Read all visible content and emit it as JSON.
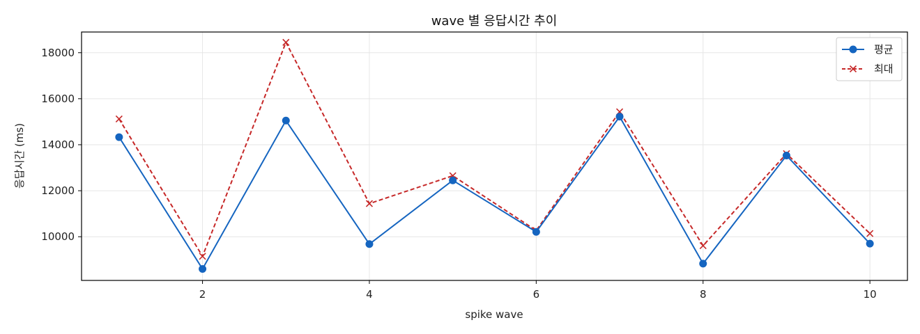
{
  "chart_data": {
    "type": "line",
    "title": "wave 별 응답시간 추이",
    "xlabel": "spike wave",
    "ylabel": "응답시간 (ms)",
    "x": [
      1,
      2,
      3,
      4,
      5,
      6,
      7,
      8,
      9,
      10
    ],
    "xticks": [
      2,
      4,
      6,
      8,
      10
    ],
    "yticks": [
      10000,
      12000,
      14000,
      16000,
      18000
    ],
    "xlim": [
      0.55,
      10.45
    ],
    "ylim": [
      8100,
      18900
    ],
    "grid": true,
    "legend_position": "top-right",
    "series": [
      {
        "name": "평균",
        "values": [
          14330,
          8600,
          15050,
          9680,
          12450,
          10210,
          15220,
          8830,
          13530,
          9700
        ],
        "color": "#1565c0",
        "line_style": "solid",
        "marker": "circle"
      },
      {
        "name": "최대",
        "values": [
          15120,
          9150,
          18450,
          11440,
          12650,
          10270,
          15430,
          9610,
          13610,
          10140
        ],
        "color": "#c62828",
        "line_style": "dashed",
        "marker": "x"
      }
    ]
  }
}
